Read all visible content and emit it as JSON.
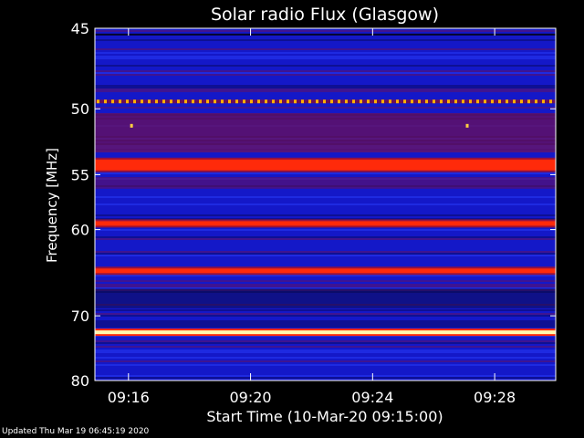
{
  "chart_data": {
    "type": "heatmap",
    "title": "Solar radio Flux (Glasgow)",
    "xlabel": "Start Time (10-Mar-20 09:15:00)",
    "ylabel": "Frequency [MHz]",
    "x_ticks": [
      "09:16",
      "09:20",
      "09:24",
      "09:28"
    ],
    "x_tick_minutes": [
      1,
      5,
      9,
      13
    ],
    "x_range_minutes": [
      -0.1,
      15
    ],
    "y_ticks": [
      45,
      50,
      55,
      60,
      70,
      80
    ],
    "y_range": [
      45,
      80
    ],
    "y_scale": "reciprocal",
    "colors": {
      "background": "#000000",
      "low": "#1418c8",
      "mid": "#6a0f5a",
      "high": "#ff2a0a",
      "max": "#fff8b0"
    },
    "bands": [
      {
        "freq": 49.5,
        "level": "dashed"
      },
      {
        "freq": 54.2,
        "level": "high"
      },
      {
        "freq": 59.4,
        "level": "high"
      },
      {
        "freq": 64.4,
        "level": "high"
      },
      {
        "freq": 72.3,
        "level": "max"
      }
    ]
  },
  "footer": {
    "updated": "Updated Thu Mar 19 06:45:19 2020"
  }
}
